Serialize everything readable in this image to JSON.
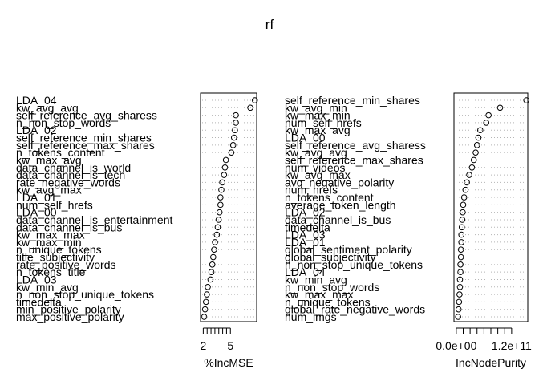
{
  "chart_data": {
    "type": "dotchart",
    "title": "rf",
    "panels": [
      {
        "name": "left",
        "xlabel": "%IncMSE",
        "xlim": [
          1.7,
          7.9
        ],
        "xticks": [
          2,
          5
        ],
        "tick_labels": [
          "2",
          "5"
        ],
        "items": [
          {
            "label": "LDA_04",
            "value": 7.7
          },
          {
            "label": "kw_avg_avg",
            "value": 7.2
          },
          {
            "label": "self_reference_avg_sharess",
            "value": 5.6
          },
          {
            "label": "n_non_stop_words",
            "value": 5.6
          },
          {
            "label": "LDA_02",
            "value": 5.5
          },
          {
            "label": "self_reference_min_shares",
            "value": 5.4
          },
          {
            "label": "self_reference_max_shares",
            "value": 5.3
          },
          {
            "label": "n_tokens_content",
            "value": 5.1
          },
          {
            "label": "kw_max_avg",
            "value": 4.5
          },
          {
            "label": "data_channel_is_world",
            "value": 4.4
          },
          {
            "label": "data_channel_is_tech",
            "value": 4.3
          },
          {
            "label": "rate_negative_words",
            "value": 4.1
          },
          {
            "label": "kw_avg_max",
            "value": 4.0
          },
          {
            "label": "LDA_01",
            "value": 3.9
          },
          {
            "label": "num_self_hrefs",
            "value": 3.9
          },
          {
            "label": "LDA_00",
            "value": 3.8
          },
          {
            "label": "data_channel_is_entertainment",
            "value": 3.7
          },
          {
            "label": "data_channel_is_bus",
            "value": 3.6
          },
          {
            "label": "kw_max_max",
            "value": 3.5
          },
          {
            "label": "kw_max_min",
            "value": 3.3
          },
          {
            "label": "n_unique_tokens",
            "value": 3.2
          },
          {
            "label": "title_subjectivity",
            "value": 3.1
          },
          {
            "label": "rate_positive_words",
            "value": 3.0
          },
          {
            "label": "n_tokens_title",
            "value": 2.9
          },
          {
            "label": "LDA_03",
            "value": 2.8
          },
          {
            "label": "kw_min_avg",
            "value": 2.5
          },
          {
            "label": "n_non_stop_unique_tokens",
            "value": 2.4
          },
          {
            "label": "timedelta",
            "value": 2.3
          },
          {
            "label": "min_positive_polarity",
            "value": 2.2
          },
          {
            "label": "max_positive_polarity",
            "value": 2.1
          }
        ]
      },
      {
        "name": "right",
        "xlabel": "IncNodePurity",
        "xlim": [
          -5000000000.0,
          155000000000.0
        ],
        "xticks": [
          0,
          120000000000.0
        ],
        "tick_labels": [
          "0.0e+00",
          "1.2e+11"
        ],
        "items": [
          {
            "label": "self_reference_min_shares",
            "value": 152000000000.0
          },
          {
            "label": "kw_avg_min",
            "value": 95000000000.0
          },
          {
            "label": "kw_max_min",
            "value": 70000000000.0
          },
          {
            "label": "num_self_hrefs",
            "value": 65000000000.0
          },
          {
            "label": "kw_max_avg",
            "value": 52000000000.0
          },
          {
            "label": "LDA_00",
            "value": 48000000000.0
          },
          {
            "label": "self_reference_avg_sharess",
            "value": 45000000000.0
          },
          {
            "label": "kw_avg_avg",
            "value": 42000000000.0
          },
          {
            "label": "self_reference_max_shares",
            "value": 38000000000.0
          },
          {
            "label": "num_videos",
            "value": 34000000000.0
          },
          {
            "label": "kw_avg_max",
            "value": 28000000000.0
          },
          {
            "label": "avg_negative_polarity",
            "value": 23000000000.0
          },
          {
            "label": "num_hrefs",
            "value": 20000000000.0
          },
          {
            "label": "n_tokens_content",
            "value": 17000000000.0
          },
          {
            "label": "average_token_length",
            "value": 15000000000.0
          },
          {
            "label": "LDA_02",
            "value": 14000000000.0
          },
          {
            "label": "data_channel_is_bus",
            "value": 13000000000.0
          },
          {
            "label": "timedelta",
            "value": 12000000000.0
          },
          {
            "label": "LDA_03",
            "value": 11000000000.0
          },
          {
            "label": "LDA_01",
            "value": 11000000000.0
          },
          {
            "label": "global_sentiment_polarity",
            "value": 10000000000.0
          },
          {
            "label": "global_subjectivity",
            "value": 10000000000.0
          },
          {
            "label": "n_non_stop_unique_tokens",
            "value": 9000000000.0
          },
          {
            "label": "LDA_04",
            "value": 9000000000.0
          },
          {
            "label": "kw_min_avg",
            "value": 8000000000.0
          },
          {
            "label": "n_non_stop_words",
            "value": 8000000000.0
          },
          {
            "label": "kw_max_max",
            "value": 7000000000.0
          },
          {
            "label": "n_unique_tokens",
            "value": 6000000000.0
          },
          {
            "label": "global_rate_negative_words",
            "value": 5000000000.0
          },
          {
            "label": "num_imgs",
            "value": 4000000000.0
          }
        ]
      }
    ]
  }
}
